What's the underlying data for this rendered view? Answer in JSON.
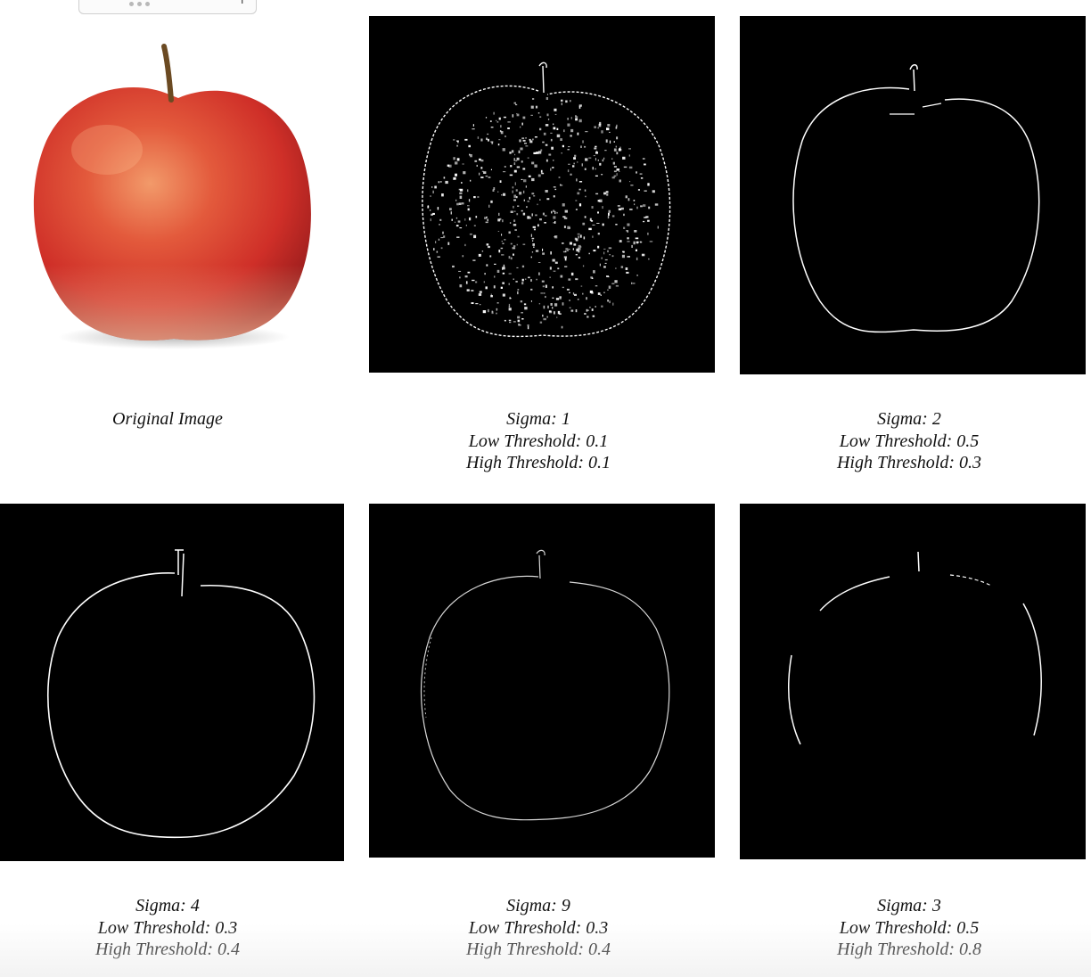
{
  "toolbar": {
    "icons": [
      "more-dots-icon",
      "minus-icon",
      "plus-icon"
    ],
    "minus_glyph": "-",
    "plus_glyph": "+"
  },
  "panels": [
    {
      "id": "original",
      "kind": "photo",
      "caption": [
        "Original Image"
      ]
    },
    {
      "id": "sigma-1",
      "kind": "edges",
      "style": "noisy",
      "caption": [
        "Sigma: 1",
        "Low Threshold: 0.1",
        "High Threshold: 0.1"
      ]
    },
    {
      "id": "sigma-2",
      "kind": "edges",
      "style": "clean",
      "caption": [
        "Sigma: 2",
        "Low Threshold: 0.5",
        "High Threshold: 0.3"
      ]
    },
    {
      "id": "sigma-4",
      "kind": "edges",
      "style": "clean",
      "caption": [
        "Sigma: 4",
        "Low Threshold: 0.3",
        "High Threshold: 0.4"
      ]
    },
    {
      "id": "sigma-9",
      "kind": "edges",
      "style": "faint",
      "caption": [
        "Sigma: 9",
        "Low Threshold: 0.3",
        "High Threshold: 0.4"
      ]
    },
    {
      "id": "sigma-3",
      "kind": "edges",
      "style": "partial",
      "caption": [
        "Sigma: 3",
        "Low Threshold: 0.5",
        "High Threshold: 0.8"
      ]
    }
  ],
  "colors": {
    "edge_background": "#000000",
    "edge_line": "#ffffff",
    "apple_red": "#d8362c",
    "apple_highlight": "#f08a5e"
  }
}
